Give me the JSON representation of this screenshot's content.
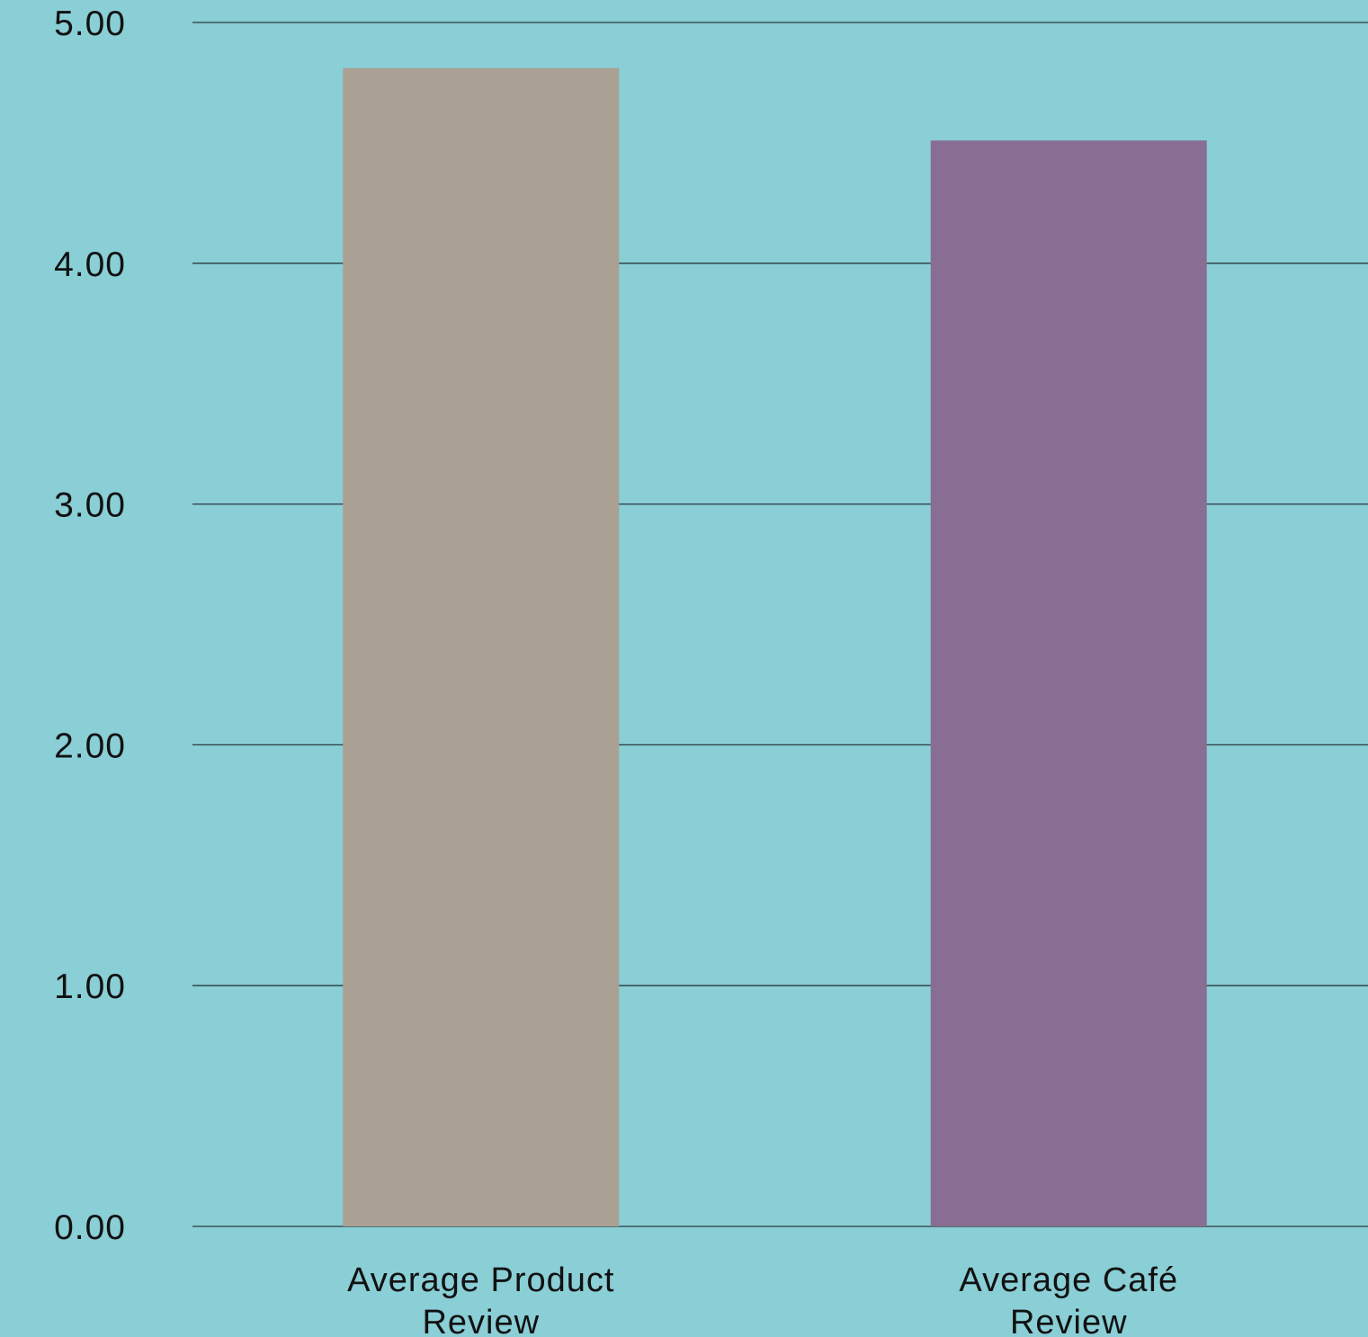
{
  "chart_data": {
    "type": "bar",
    "categories": [
      [
        "Average Product",
        "Review"
      ],
      [
        "Average Café",
        "Review"
      ]
    ],
    "values": [
      4.81,
      4.51
    ],
    "colors": [
      "#aaa093",
      "#886e93"
    ],
    "background_color": "#8aced6",
    "ylim": [
      0,
      5
    ],
    "yticks": [
      "0.00",
      "1.00",
      "2.00",
      "3.00",
      "4.00",
      "5.00"
    ],
    "grid": true,
    "legend": "none",
    "title": "",
    "xlabel": "",
    "ylabel": ""
  }
}
